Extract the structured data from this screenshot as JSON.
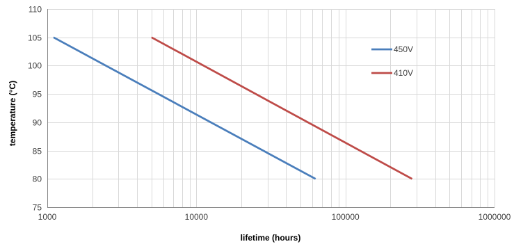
{
  "chart_data": {
    "type": "line",
    "title": "",
    "xlabel": "lifetime (hours)",
    "ylabel": "temperature (°C)",
    "x_scale": "log",
    "xlim": [
      1000,
      1000000
    ],
    "ylim": [
      75,
      110
    ],
    "x_ticks": [
      1000,
      10000,
      100000,
      1000000
    ],
    "x_tick_labels": [
      "1000",
      "10000",
      "100000",
      "1000000"
    ],
    "y_ticks": [
      75,
      80,
      85,
      90,
      95,
      100,
      105,
      110
    ],
    "y_tick_labels": [
      "75",
      "80",
      "85",
      "90",
      "95",
      "100",
      "105",
      "110"
    ],
    "grid": true,
    "legend_position": "top-right",
    "series": [
      {
        "name": "450V",
        "color": "#4a7ebb",
        "x": [
          1100,
          63000
        ],
        "y": [
          105,
          80
        ]
      },
      {
        "name": "410V",
        "color": "#be4b48",
        "x": [
          5000,
          280000
        ],
        "y": [
          105,
          80
        ]
      }
    ]
  }
}
